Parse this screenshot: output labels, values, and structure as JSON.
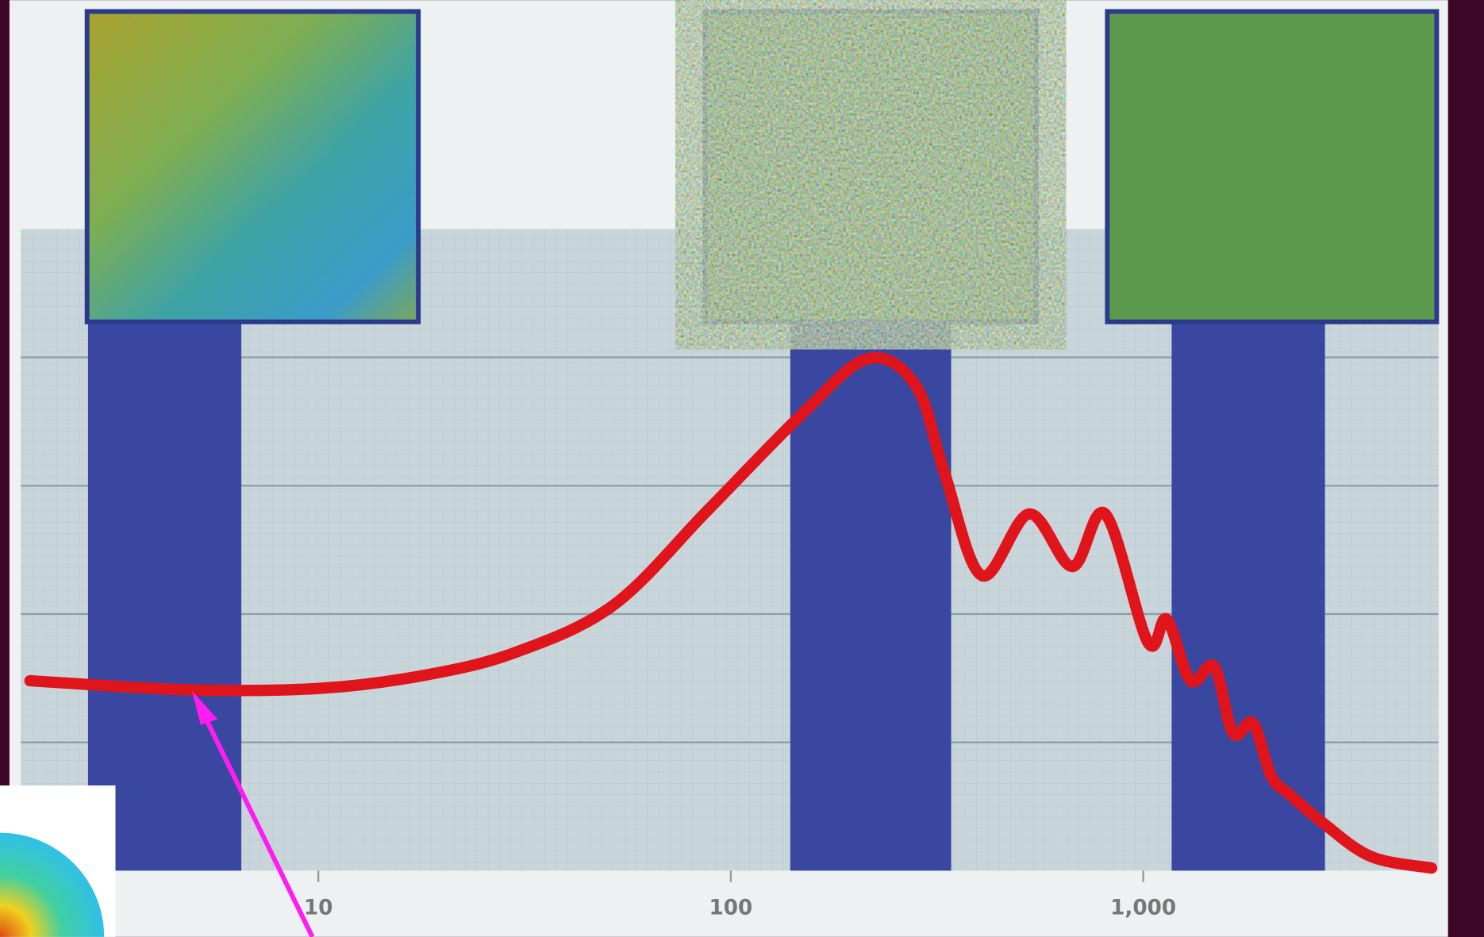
{
  "chart_data": {
    "type": "line",
    "x": [
      2,
      4.77,
      10,
      17.9,
      30,
      52,
      88,
      149,
      215,
      281,
      329,
      406,
      529,
      673,
      809,
      1026,
      1140,
      1302,
      1486,
      1651,
      1845,
      2042,
      2270,
      2733,
      3565,
      5000
    ],
    "series": [
      {
        "color": "#e0141b",
        "values": [
          1.48,
          1.41,
          1.42,
          1.52,
          1.7,
          2.07,
          2.81,
          3.56,
          3.99,
          3.78,
          3.11,
          2.3,
          2.78,
          2.37,
          2.78,
          1.78,
          1.96,
          1.48,
          1.59,
          1.07,
          1.15,
          0.74,
          0.59,
          0.37,
          0.11,
          0.02
        ]
      }
    ],
    "xscale": "log",
    "xlim": [
      1.9,
      5200
    ],
    "xticks": [
      10,
      100,
      {
        "value": 1000,
        "label": "1,000"
      }
    ],
    "ylim": [
      0,
      5
    ],
    "ygrid": [
      1,
      2,
      3,
      4
    ],
    "grid": true
  }
}
